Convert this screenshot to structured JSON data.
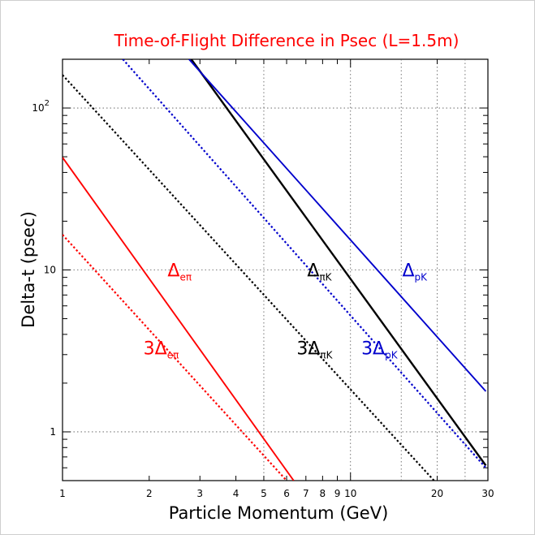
{
  "chart_data": {
    "type": "line",
    "title": "Time-of-Flight Difference in Psec (L=1.5m)",
    "title_color": "#ff0000",
    "xlabel": "Particle Momentum (GeV)",
    "ylabel": "Delta-t (psec)",
    "xscale": "log",
    "yscale": "log",
    "xlim": [
      1,
      30
    ],
    "ylim": [
      0.5,
      200
    ],
    "grid": true,
    "x_ticks": [
      {
        "value": 1,
        "label": "1"
      },
      {
        "value": 2,
        "label": "2"
      },
      {
        "value": 3,
        "label": "3"
      },
      {
        "value": 4,
        "label": "4"
      },
      {
        "value": 5,
        "label": "5"
      },
      {
        "value": 6,
        "label": "6"
      },
      {
        "value": 7,
        "label": "7"
      },
      {
        "value": 8,
        "label": "8"
      },
      {
        "value": 9,
        "label": "9"
      },
      {
        "value": 10,
        "label": "10"
      },
      {
        "value": 20,
        "label": "20"
      },
      {
        "value": 30,
        "label": "30"
      }
    ],
    "x_gridlines": [
      5,
      10,
      15,
      20,
      25
    ],
    "y_ticks": [
      {
        "value": 1,
        "label": "1"
      },
      {
        "value": 10,
        "label": "10"
      },
      {
        "value": 100,
        "label": "10",
        "sup": "2"
      }
    ],
    "series": [
      {
        "x": [
          1,
          6.35
        ],
        "y": [
          49.5,
          0.5
        ],
        "color": "#ff0000",
        "dash": "solid",
        "label": "Δ",
        "label_sub": "eπ",
        "label_at": [
          2.55,
          10
        ]
      },
      {
        "x": [
          1,
          6.0
        ],
        "y": [
          16.5,
          0.5
        ],
        "color": "#ff0000",
        "dash": "dotted",
        "label": "3Δ",
        "label_sub": "eπ",
        "label_at": [
          2.2,
          3.3
        ]
      },
      {
        "x": [
          2.8,
          29.5
        ],
        "y": [
          200,
          0.62
        ],
        "color": "#000000",
        "dash": "solid",
        "label": "Δ",
        "label_sub": "πK",
        "label_at": [
          7.8,
          10
        ]
      },
      {
        "x": [
          1,
          19.5
        ],
        "y": [
          160,
          0.5
        ],
        "color": "#000000",
        "dash": "dotted",
        "label": "3Δ",
        "label_sub": "πK",
        "label_at": [
          7.5,
          3.3
        ]
      },
      {
        "x": [
          2.75,
          29.5
        ],
        "y": [
          200,
          1.78
        ],
        "color": "#0000cc",
        "dash": "solid",
        "label": "Δ",
        "label_sub": "pK",
        "label_at": [
          16.7,
          10
        ]
      },
      {
        "x": [
          1.62,
          29.5
        ],
        "y": [
          200,
          0.6
        ],
        "color": "#0000cc",
        "dash": "dotted",
        "label": "3Δ",
        "label_sub": "pK",
        "label_at": [
          12.6,
          3.3
        ]
      }
    ]
  }
}
